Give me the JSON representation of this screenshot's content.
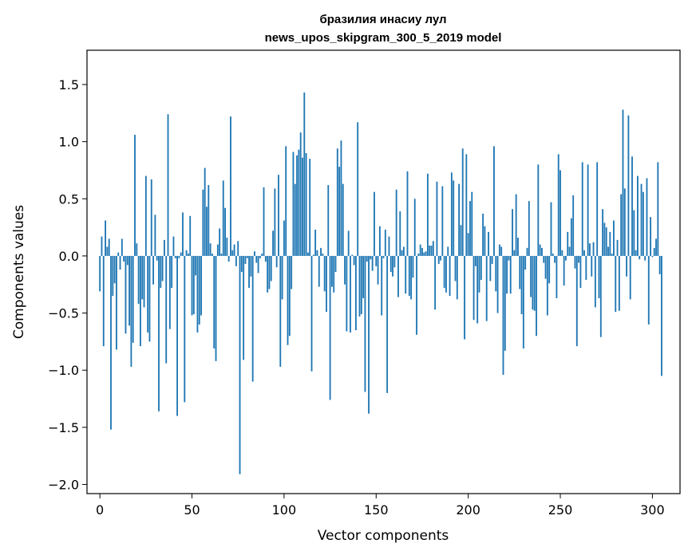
{
  "chart_data": {
    "type": "bar",
    "title_line1": "бразилия инасиу лул",
    "title_line2": "news_upos_skipgram_300_5_2019 model",
    "xlabel": "Vector components",
    "ylabel": "Components values",
    "xlim": [
      -7,
      315
    ],
    "ylim": [
      -2.08,
      1.8
    ],
    "xticks": [
      0,
      50,
      100,
      150,
      200,
      250,
      300
    ],
    "yticks": [
      1.5,
      1.0,
      0.5,
      0.0,
      -0.5,
      -1.0,
      -1.5,
      -2.0
    ],
    "ytick_labels": [
      "1.5",
      "1.0",
      "0.5",
      "0.0",
      "−0.5",
      "−1.0",
      "−1.5",
      "−2.0"
    ],
    "grid": false,
    "legend": "none",
    "bar_color": "#1f77b4",
    "values": [
      -0.31,
      0.17,
      -0.79,
      0.31,
      0.08,
      0.15,
      -1.52,
      -0.35,
      -0.24,
      -0.82,
      0.03,
      -0.12,
      0.15,
      -0.05,
      -0.68,
      -0.08,
      -0.61,
      -0.97,
      -0.76,
      1.06,
      0.11,
      -0.42,
      -0.79,
      -0.38,
      -0.45,
      0.7,
      -0.67,
      -0.75,
      0.67,
      -0.25,
      0.36,
      -0.04,
      -1.36,
      -0.28,
      -0.22,
      0.14,
      -0.94,
      1.24,
      -0.64,
      -0.28,
      0.17,
      -0.02,
      -1.4,
      -0.02,
      0.03,
      0.38,
      -1.28,
      0.05,
      0.02,
      0.35,
      -0.52,
      -0.51,
      -0.17,
      -0.67,
      -0.6,
      -0.52,
      0.58,
      0.77,
      0.43,
      0.62,
      0.11,
      0.02,
      -0.81,
      -0.92,
      0.1,
      0.24,
      0.02,
      0.66,
      0.42,
      0.16,
      -0.05,
      1.22,
      0.05,
      0.1,
      -0.09,
      0.13,
      -1.91,
      -0.14,
      -0.91,
      -0.07,
      -0.02,
      -0.28,
      -0.18,
      -1.1,
      0.04,
      -0.06,
      -0.15,
      -0.02,
      0.02,
      0.6,
      -0.05,
      -0.32,
      -0.29,
      -0.22,
      0.22,
      0.59,
      -0.1,
      0.71,
      -0.97,
      -0.38,
      0.31,
      0.96,
      -0.78,
      -0.7,
      -0.29,
      0.91,
      0.63,
      0.88,
      0.93,
      1.08,
      0.86,
      1.43,
      0.9,
      0.03,
      0.85,
      -1.01,
      0.01,
      0.23,
      0.05,
      -0.27,
      0.07,
      0.02,
      -0.31,
      -0.49,
      0.62,
      -1.26,
      -0.27,
      -0.32,
      -0.14,
      0.94,
      0.78,
      1.01,
      0.63,
      -0.25,
      -0.66,
      0.22,
      -0.67,
      0.01,
      -0.08,
      -0.65,
      1.17,
      -0.53,
      -0.51,
      -0.37,
      -1.19,
      -0.05,
      -1.38,
      -0.03,
      -0.13,
      0.56,
      -0.09,
      -0.25,
      0.26,
      -0.52,
      -0.02,
      0.23,
      -1.2,
      0.17,
      -0.14,
      -0.18,
      -0.1,
      0.58,
      -0.36,
      0.39,
      0.05,
      0.08,
      -0.33,
      0.74,
      -0.35,
      -0.38,
      -0.19,
      0.5,
      -0.69,
      0.02,
      0.1,
      0.07,
      0.03,
      0.04,
      0.72,
      0.09,
      0.09,
      0.13,
      -0.47,
      0.65,
      -0.07,
      -0.04,
      0.61,
      -0.28,
      -0.32,
      0.08,
      -0.35,
      0.73,
      0.66,
      -0.22,
      -0.38,
      0.63,
      0.27,
      0.94,
      -0.73,
      0.89,
      0.2,
      0.48,
      0.56,
      -0.56,
      -0.09,
      -0.59,
      -0.32,
      -0.21,
      0.37,
      0.26,
      -0.57,
      0.21,
      -0.22,
      -0.07,
      0.96,
      -0.31,
      -0.5,
      0.1,
      0.08,
      -1.04,
      -0.83,
      -0.33,
      -0.04,
      -0.33,
      0.41,
      0.05,
      0.54,
      0.16,
      -0.29,
      -0.51,
      -0.81,
      -0.12,
      0.07,
      0.48,
      -0.36,
      -0.47,
      -0.48,
      -0.7,
      0.8,
      0.1,
      0.07,
      -0.06,
      -0.2,
      -0.52,
      -0.24,
      0.47,
      0.02,
      -0.06,
      -0.37,
      0.89,
      0.75,
      0.05,
      -0.26,
      -0.04,
      0.21,
      0.08,
      0.33,
      0.53,
      -0.11,
      -0.79,
      -0.06,
      -0.28,
      0.82,
      0.05,
      -0.21,
      0.8,
      0.11,
      -0.18,
      0.12,
      -0.45,
      0.82,
      -0.37,
      -0.71,
      0.41,
      0.29,
      0.25,
      0.08,
      0.21,
      0.02,
      0.31,
      -0.49,
      0.14,
      -0.48,
      0.54,
      1.28,
      0.59,
      -0.18,
      1.23,
      -0.38,
      0.87,
      0.4,
      0.05,
      0.7,
      -0.03,
      0.63,
      0.56,
      -0.04,
      0.68,
      -0.6,
      0.34,
      -0.01,
      0.07,
      0.15,
      0.82,
      -0.16,
      -1.05
    ]
  }
}
